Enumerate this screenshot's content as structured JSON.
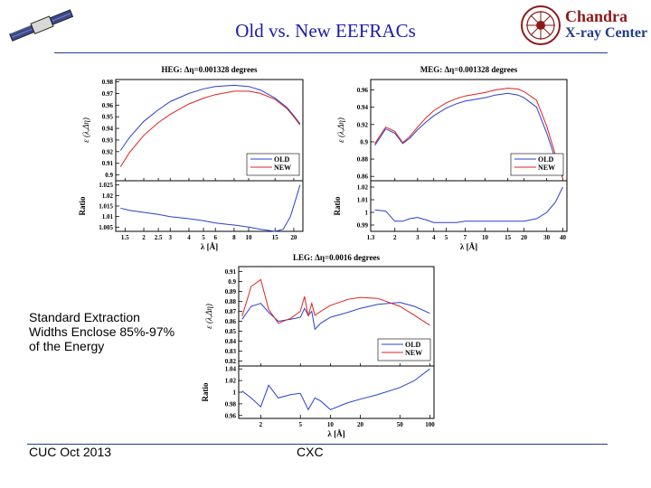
{
  "slide": {
    "title": "Old vs. New EEFRACs",
    "logo_line1": "Chandra",
    "logo_line2": "X-ray Center",
    "side_text_lines": [
      "Standard Extraction",
      "Widths Enclose 85%-97%",
      "of the Energy"
    ],
    "footer_left": "CUC Oct  2013",
    "footer_center": "CXC"
  },
  "colors": {
    "old": "#2b3fd1",
    "new": "#e02020",
    "title": "#1b1bb0",
    "rule": "#1f3c8c"
  },
  "chart_data": [
    {
      "type": "line",
      "title": "HEG: Δη=0.001328 degrees",
      "ylabel": "ε (λ,Δη)",
      "ratio_ylabel": "Ratio",
      "xlabel": "λ [Å]",
      "xscale": "log",
      "xlim": [
        1.3,
        23
      ],
      "xticks": [
        "1.5",
        "2",
        "2.5",
        "3",
        "4",
        "5",
        "6",
        "8",
        "10",
        "15",
        "20"
      ],
      "ylim": [
        0.895,
        0.982
      ],
      "yticks": [
        "0.9",
        "0.91",
        "0.92",
        "0.93",
        "0.94",
        "0.95",
        "0.96",
        "0.97",
        "0.98"
      ],
      "ratio_ylim": [
        1.003,
        1.027
      ],
      "ratio_yticks": [
        "1.005",
        "1.01",
        "1.015",
        "1.02",
        "1.025"
      ],
      "legend": [
        "OLD",
        "NEW"
      ],
      "series": [
        {
          "name": "OLD",
          "x": [
            1.4,
            1.6,
            2,
            2.5,
            3,
            4,
            5,
            6,
            8,
            10,
            12,
            15,
            18,
            20,
            22
          ],
          "y": [
            0.921,
            0.932,
            0.946,
            0.956,
            0.963,
            0.97,
            0.974,
            0.976,
            0.977,
            0.976,
            0.973,
            0.966,
            0.958,
            0.951,
            0.944
          ]
        },
        {
          "name": "NEW",
          "x": [
            1.4,
            1.6,
            2,
            2.5,
            3,
            4,
            5,
            6,
            8,
            10,
            12,
            15,
            18,
            20,
            22
          ],
          "y": [
            0.907,
            0.919,
            0.934,
            0.945,
            0.952,
            0.961,
            0.966,
            0.969,
            0.972,
            0.972,
            0.97,
            0.965,
            0.957,
            0.95,
            0.943
          ]
        }
      ],
      "ratio": {
        "x": [
          1.4,
          1.6,
          2,
          2.5,
          3,
          4,
          5,
          6,
          8,
          10,
          12,
          15,
          17,
          19,
          21,
          22
        ],
        "y": [
          1.014,
          1.013,
          1.012,
          1.011,
          1.01,
          1.009,
          1.008,
          1.007,
          1.006,
          1.005,
          1.004,
          1.003,
          1.004,
          1.01,
          1.02,
          1.025
        ]
      }
    },
    {
      "type": "line",
      "title": "MEG: Δη=0.001328 degrees",
      "ylabel": "ε (λ,Δη)",
      "ratio_ylabel": "Ratio",
      "xlabel": "λ [Å]",
      "xscale": "log",
      "xlim": [
        1.3,
        43
      ],
      "xticks": [
        "1.3",
        "2",
        "3",
        "4",
        "5",
        "7",
        "10",
        "15",
        "20",
        "30",
        "40"
      ],
      "ylim": [
        0.855,
        0.972
      ],
      "yticks": [
        "0.86",
        "0.88",
        "0.9",
        "0.92",
        "0.94",
        "0.96"
      ],
      "ratio_ylim": [
        0.985,
        1.025
      ],
      "ratio_yticks": [
        "0.99",
        "1",
        "1.01",
        "1.02"
      ],
      "legend": [
        "OLD",
        "NEW"
      ],
      "series": [
        {
          "name": "OLD",
          "x": [
            1.4,
            1.7,
            2,
            2.3,
            2.6,
            3,
            3.5,
            4,
            5,
            6,
            7,
            10,
            12,
            15,
            18,
            20,
            25,
            30,
            35,
            40
          ],
          "y": [
            0.896,
            0.915,
            0.91,
            0.898,
            0.904,
            0.914,
            0.923,
            0.93,
            0.939,
            0.944,
            0.947,
            0.951,
            0.954,
            0.956,
            0.954,
            0.951,
            0.94,
            0.91,
            0.88,
            0.86
          ]
        },
        {
          "name": "NEW",
          "x": [
            1.4,
            1.7,
            2,
            2.3,
            2.6,
            3,
            3.5,
            4,
            5,
            6,
            7,
            10,
            12,
            15,
            18,
            20,
            25,
            30,
            35,
            40
          ],
          "y": [
            0.898,
            0.917,
            0.912,
            0.899,
            0.906,
            0.917,
            0.928,
            0.936,
            0.945,
            0.95,
            0.953,
            0.957,
            0.96,
            0.962,
            0.961,
            0.958,
            0.948,
            0.918,
            0.885,
            0.857
          ]
        }
      ],
      "ratio": {
        "x": [
          1.4,
          1.7,
          2,
          2.3,
          2.6,
          3,
          3.5,
          4,
          5,
          6,
          7,
          10,
          15,
          20,
          25,
          30,
          35,
          40
        ],
        "y": [
          1.002,
          1.001,
          0.993,
          0.993,
          0.995,
          0.996,
          0.994,
          0.992,
          0.992,
          0.992,
          0.993,
          0.993,
          0.993,
          0.993,
          0.995,
          1.0,
          1.008,
          1.02
        ]
      }
    },
    {
      "type": "line",
      "title": "LEG: Δη=0.0016 degrees",
      "ylabel": "ε (λ,Δη)",
      "ratio_ylabel": "Ratio",
      "xlabel": "λ [Å]",
      "xscale": "log",
      "xlim": [
        1.2,
        110
      ],
      "xticks": [
        "2",
        "5",
        "10",
        "20",
        "50",
        "100"
      ],
      "ylim": [
        0.815,
        0.915
      ],
      "yticks": [
        "0.82",
        "0.83",
        "0.84",
        "0.85",
        "0.86",
        "0.87",
        "0.88",
        "0.89",
        "0.9",
        "0.91"
      ],
      "ratio_ylim": [
        0.955,
        1.045
      ],
      "ratio_yticks": [
        "0.96",
        "0.98",
        "1",
        "1.02",
        "1.04"
      ],
      "legend": [
        "OLD",
        "NEW"
      ],
      "series": [
        {
          "name": "OLD",
          "x": [
            1.3,
            1.6,
            2,
            2.4,
            3,
            4,
            5,
            5.5,
            6,
            6.5,
            7,
            8,
            10,
            15,
            20,
            30,
            50,
            70,
            100
          ],
          "y": [
            0.862,
            0.875,
            0.878,
            0.869,
            0.86,
            0.862,
            0.864,
            0.873,
            0.866,
            0.87,
            0.852,
            0.858,
            0.864,
            0.869,
            0.873,
            0.877,
            0.879,
            0.875,
            0.868
          ]
        },
        {
          "name": "NEW",
          "x": [
            1.3,
            1.6,
            2,
            2.4,
            3,
            4,
            5,
            5.5,
            6,
            6.5,
            7,
            8,
            10,
            15,
            20,
            30,
            50,
            70,
            100
          ],
          "y": [
            0.865,
            0.895,
            0.902,
            0.872,
            0.858,
            0.863,
            0.87,
            0.885,
            0.865,
            0.878,
            0.866,
            0.87,
            0.876,
            0.882,
            0.884,
            0.883,
            0.875,
            0.866,
            0.856
          ]
        }
      ],
      "ratio": {
        "x": [
          1.3,
          1.6,
          2,
          2.4,
          3,
          4,
          5,
          6,
          7,
          8,
          10,
          15,
          20,
          30,
          50,
          70,
          100
        ],
        "y": [
          1.002,
          0.99,
          0.975,
          1.012,
          0.99,
          0.996,
          0.998,
          0.97,
          0.99,
          0.985,
          0.97,
          0.982,
          0.988,
          0.996,
          1.008,
          1.02,
          1.04
        ]
      }
    }
  ]
}
